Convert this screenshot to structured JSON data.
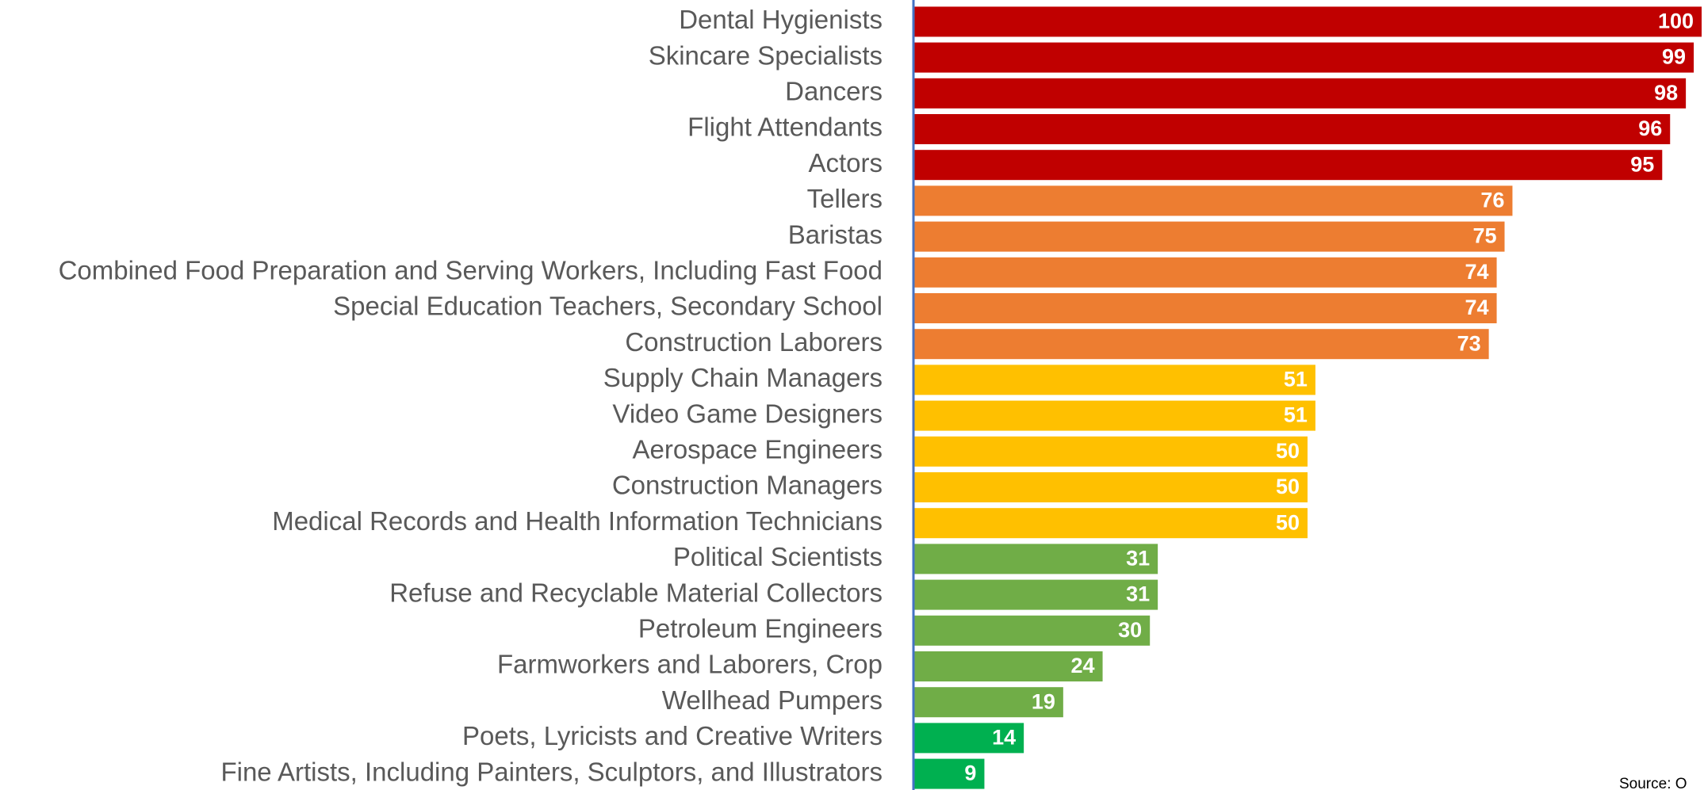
{
  "chart_data": {
    "type": "bar",
    "orientation": "horizontal",
    "categories": [
      "Dental Hygienists",
      "Skincare Specialists",
      "Dancers",
      "Flight Attendants",
      "Actors",
      "Tellers",
      "Baristas",
      "Combined Food Preparation and Serving Workers, Including Fast Food",
      "Special Education Teachers, Secondary School",
      "Construction Laborers",
      "Supply Chain Managers",
      "Video Game Designers",
      "Aerospace Engineers",
      "Construction Managers",
      "Medical Records and Health Information Technicians",
      "Political Scientists",
      "Refuse and Recyclable Material Collectors",
      "Petroleum Engineers",
      "Farmworkers and Laborers, Crop",
      "Wellhead Pumpers",
      "Poets, Lyricists and Creative Writers",
      "Fine Artists, Including Painters, Sculptors, and Illustrators"
    ],
    "values": [
      100,
      99,
      98,
      96,
      95,
      76,
      75,
      74,
      74,
      73,
      51,
      51,
      50,
      50,
      50,
      31,
      31,
      30,
      24,
      19,
      14,
      9
    ],
    "colors": [
      "#c00000",
      "#c00000",
      "#c00000",
      "#c00000",
      "#c00000",
      "#ed7d31",
      "#ed7d31",
      "#ed7d31",
      "#ed7d31",
      "#ed7d31",
      "#ffc000",
      "#ffc000",
      "#ffc000",
      "#ffc000",
      "#ffc000",
      "#70ad47",
      "#70ad47",
      "#70ad47",
      "#70ad47",
      "#70ad47",
      "#00b050",
      "#00b050"
    ],
    "source": "Source: O"
  }
}
